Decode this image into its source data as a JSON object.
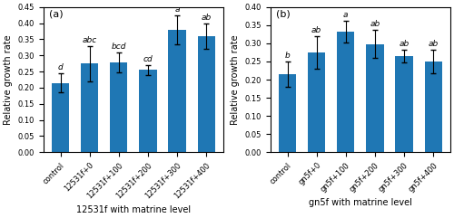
{
  "chart_data": [
    {
      "type": "bar",
      "title": "(a)",
      "categories": [
        "control",
        "12531f+0",
        "12531f+100",
        "12531f+200",
        "12531f+300",
        "12531f+400"
      ],
      "values": [
        0.215,
        0.275,
        0.278,
        0.255,
        0.38,
        0.36
      ],
      "errors": [
        0.03,
        0.055,
        0.03,
        0.015,
        0.045,
        0.04
      ],
      "annotations": [
        "d",
        "abc",
        "bcd",
        "cd",
        "a",
        "ab"
      ],
      "x_label": "12531f with matrine level",
      "y_label": "Relative growth rate",
      "ylim": [
        0,
        0.45
      ],
      "yticks": [
        {
          "value": 0.0,
          "label": "0.00"
        },
        {
          "value": 0.05,
          "label": "0.05"
        },
        {
          "value": 0.1,
          "label": "0.10"
        },
        {
          "value": 0.15,
          "label": "0.15"
        },
        {
          "value": 0.2,
          "label": "0.20"
        },
        {
          "value": 0.25,
          "label": "0.25"
        },
        {
          "value": 0.3,
          "label": "0.30"
        },
        {
          "value": 0.35,
          "label": "0.35"
        },
        {
          "value": 0.4,
          "label": "0.40"
        },
        {
          "value": 0.45,
          "label": "0.45"
        }
      ],
      "grid": false
    },
    {
      "type": "bar",
      "title": "(b)",
      "categories": [
        "control",
        "gn5f+0",
        "gn5f+100",
        "gn5f+200",
        "gn5f+300",
        "gn5f+400"
      ],
      "values": [
        0.215,
        0.275,
        0.332,
        0.298,
        0.265,
        0.25
      ],
      "errors": [
        0.035,
        0.045,
        0.03,
        0.038,
        0.018,
        0.032
      ],
      "annotations": [
        "b",
        "ab",
        "a",
        "ab",
        "ab",
        "ab"
      ],
      "x_label": "gn5f with matrine level",
      "y_label": "Relative growth rate",
      "ylim": [
        0,
        0.4
      ],
      "yticks": [
        {
          "value": 0.0,
          "label": "0.00"
        },
        {
          "value": 0.05,
          "label": "0.05"
        },
        {
          "value": 0.1,
          "label": "0.10"
        },
        {
          "value": 0.15,
          "label": "0.15"
        },
        {
          "value": 0.2,
          "label": "0.20"
        },
        {
          "value": 0.25,
          "label": "0.25"
        },
        {
          "value": 0.3,
          "label": "0.30"
        },
        {
          "value": 0.35,
          "label": "0.35"
        },
        {
          "value": 0.4,
          "label": "0.40"
        }
      ],
      "grid": false
    }
  ]
}
